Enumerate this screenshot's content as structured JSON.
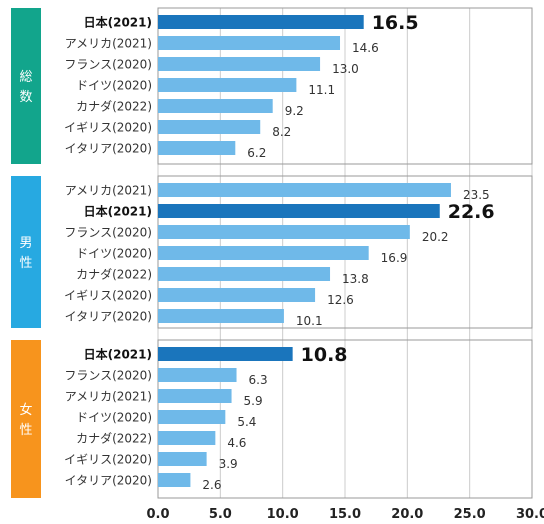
{
  "chart_data": [
    {
      "type": "bar",
      "orientation": "horizontal",
      "panel_label": "総数",
      "panel_color": "#12a58c",
      "categories": [
        "日本(2021)",
        "アメリカ(2021)",
        "フランス(2020)",
        "ドイツ(2020)",
        "カナダ(2022)",
        "イギリス(2020)",
        "イタリア(2020)"
      ],
      "values": [
        16.5,
        14.6,
        13.0,
        11.1,
        9.2,
        8.2,
        6.2
      ],
      "value_labels": [
        "16.5",
        "14.6",
        "13.0",
        "11.1",
        "9.2",
        "8.2",
        "6.2"
      ],
      "highlight": "日本(2021)"
    },
    {
      "type": "bar",
      "orientation": "horizontal",
      "panel_label": "男性",
      "panel_color": "#27a9e1",
      "categories": [
        "アメリカ(2021)",
        "日本(2021)",
        "フランス(2020)",
        "ドイツ(2020)",
        "カナダ(2022)",
        "イギリス(2020)",
        "イタリア(2020)"
      ],
      "values": [
        23.5,
        22.6,
        20.2,
        16.9,
        13.8,
        12.6,
        10.1
      ],
      "value_labels": [
        "23.5",
        "22.6",
        "20.2",
        "16.9",
        "13.8",
        "12.6",
        "10.1"
      ],
      "highlight": "日本(2021)"
    },
    {
      "type": "bar",
      "orientation": "horizontal",
      "panel_label": "女性",
      "panel_color": "#f7941d",
      "categories": [
        "日本(2021)",
        "フランス(2020)",
        "アメリカ(2021)",
        "ドイツ(2020)",
        "カナダ(2022)",
        "イギリス(2020)",
        "イタリア(2020)"
      ],
      "values": [
        10.8,
        6.3,
        5.9,
        5.4,
        4.6,
        3.9,
        2.6
      ],
      "value_labels": [
        "10.8",
        "6.3",
        "5.9",
        "5.4",
        "4.6",
        "3.9",
        "2.6"
      ],
      "highlight": "日本(2021)"
    }
  ],
  "x_axis": {
    "xlim": [
      0,
      30
    ],
    "ticks": [
      0,
      5,
      10,
      15,
      20,
      25,
      30
    ],
    "tick_labels": [
      "0.0",
      "5.0",
      "10.0",
      "15.0",
      "20.0",
      "25.0",
      "30.0"
    ],
    "grid": true
  },
  "colors": {
    "highlight_bar": "#1a75bc",
    "bar": "#6fb9e9",
    "grid": "#cccccc",
    "frame": "#999999"
  }
}
